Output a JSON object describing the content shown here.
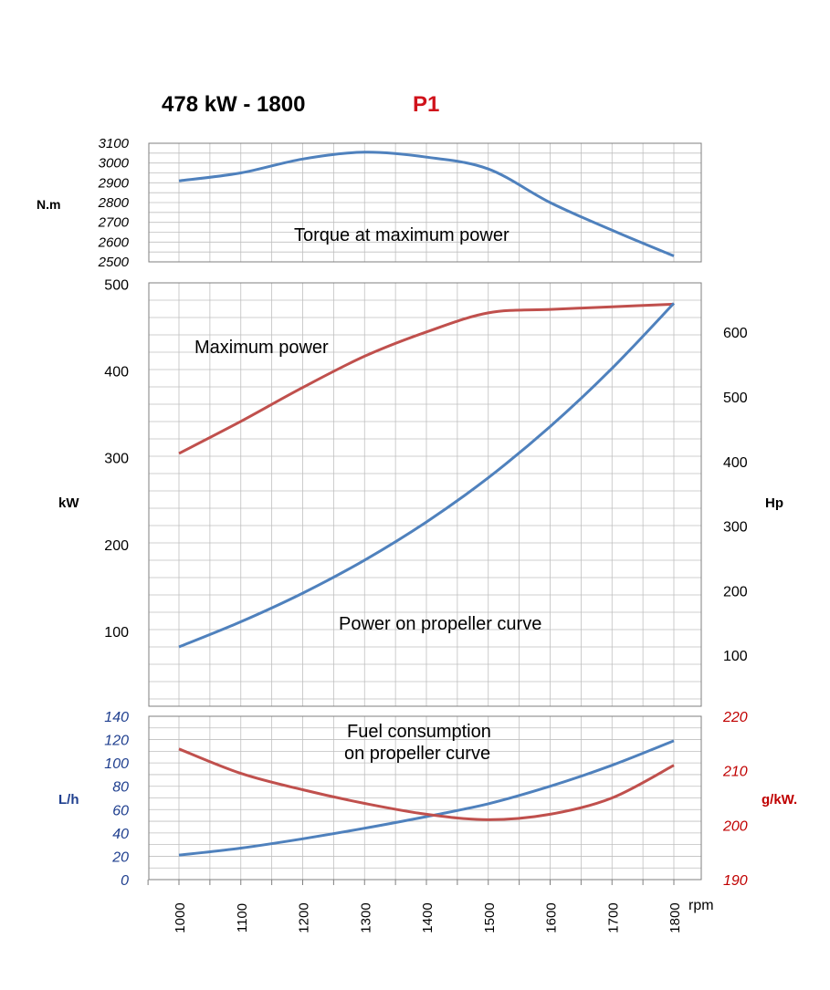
{
  "header": {
    "title": "478 kW - 1800",
    "code": "P1"
  },
  "colors": {
    "blue": "#4f81bd",
    "red": "#c0504d",
    "red_text": "#c00000",
    "blue_text": "#1f3f8f",
    "grid": "#bfbfbf",
    "frame": "#7f7f7f"
  },
  "chart_data": [
    {
      "type": "line",
      "annotation": "Torque at maximum power",
      "ylabel": "N.m",
      "ylim": [
        2500,
        3100
      ],
      "yticks": [
        "2500",
        "2600",
        "2700",
        "2800",
        "2900",
        "3000",
        "3100"
      ],
      "x": [
        1000,
        1100,
        1200,
        1300,
        1400,
        1500,
        1600,
        1700,
        1800
      ],
      "series": [
        {
          "values": [
            2910,
            2950,
            3020,
            3055,
            3030,
            2970,
            2800,
            2660,
            2530
          ]
        }
      ]
    },
    {
      "type": "line",
      "ylabel": "kW",
      "ylabel_right": "Hp",
      "ylim": [
        0,
        500
      ],
      "yticks": [
        "100",
        "200",
        "300",
        "400",
        "500"
      ],
      "yticks_right": [
        "100",
        "200",
        "300",
        "400",
        "500",
        "600"
      ],
      "x": [
        1000,
        1100,
        1200,
        1300,
        1400,
        1500,
        1600,
        1700,
        1800
      ],
      "series": [
        {
          "name": "Maximum power",
          "values": [
            305,
            342,
            381,
            417,
            445,
            467,
            471,
            474,
            477
          ]
        },
        {
          "name": "Power on propeller curve",
          "values": [
            82,
            111,
            144,
            182,
            226,
            277,
            336,
            403,
            478
          ]
        }
      ]
    },
    {
      "type": "line",
      "annotation": [
        "Fuel consumption",
        "on propeller curve"
      ],
      "ylabel": "L/h",
      "ylabel_right": "g/kW.",
      "ylim": [
        0,
        140
      ],
      "ylim_right": [
        190,
        220
      ],
      "yticks": [
        "0",
        "20",
        "40",
        "60",
        "80",
        "100",
        "120",
        "140"
      ],
      "yticks_right": [
        "190",
        "200",
        "210",
        "220"
      ],
      "xlabel": "rpm",
      "xticks": [
        "1000",
        "1100",
        "1200",
        "1300",
        "1400",
        "1500",
        "1600",
        "1700",
        "1800"
      ],
      "x": [
        1000,
        1100,
        1200,
        1300,
        1400,
        1500,
        1600,
        1700,
        1800
      ],
      "series": [
        {
          "values": [
            21,
            27,
            35,
            44,
            54,
            65,
            80,
            98,
            119
          ]
        },
        {
          "values": [
            214,
            209.5,
            206.5,
            204,
            202,
            201,
            202,
            205,
            211
          ]
        }
      ]
    }
  ]
}
